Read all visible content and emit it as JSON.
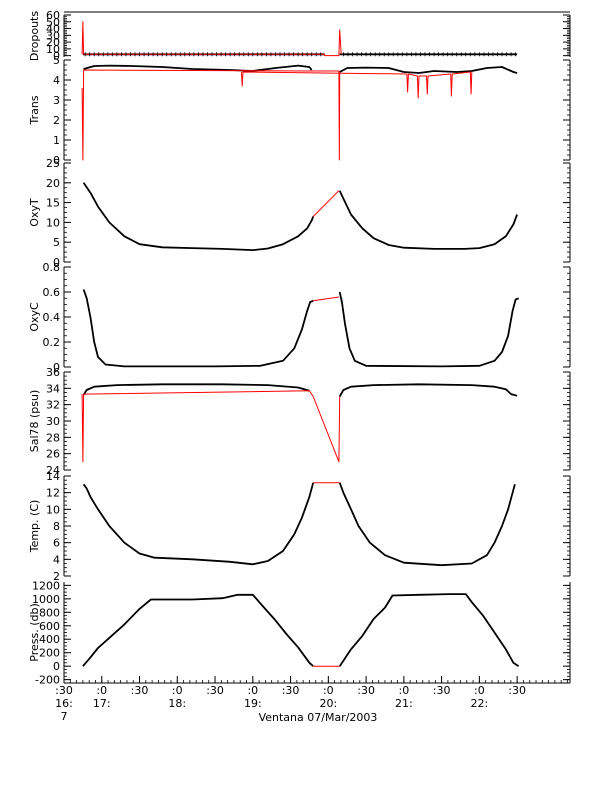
{
  "figure": {
    "footer_label": "Ventana 07/Mar/2003",
    "x_ticks": [
      {
        "t": 16.5,
        "l1": ":30",
        "l2": "16:",
        "l3": "7"
      },
      {
        "t": 17.0,
        "l1": ":0",
        "l2": "17:",
        "l3": ""
      },
      {
        "t": 17.5,
        "l1": ":30",
        "l2": "",
        "l3": ""
      },
      {
        "t": 18.0,
        "l1": ":0",
        "l2": "18:",
        "l3": ""
      },
      {
        "t": 18.5,
        "l1": ":30",
        "l2": "",
        "l3": ""
      },
      {
        "t": 19.0,
        "l1": ":0",
        "l2": "19:",
        "l3": ""
      },
      {
        "t": 19.5,
        "l1": ":30",
        "l2": "",
        "l3": ""
      },
      {
        "t": 20.0,
        "l1": ":0",
        "l2": "20:",
        "l3": ""
      },
      {
        "t": 20.5,
        "l1": ":30",
        "l2": "",
        "l3": ""
      },
      {
        "t": 21.0,
        "l1": ":0",
        "l2": "21:",
        "l3": ""
      },
      {
        "t": 21.5,
        "l1": ":30",
        "l2": "",
        "l3": ""
      },
      {
        "t": 22.0,
        "l1": ":0",
        "l2": "22:",
        "l3": ""
      },
      {
        "t": 22.5,
        "l1": ":30",
        "l2": "",
        "l3": ""
      }
    ],
    "x_range": [
      16.5,
      23.2
    ],
    "colors": {
      "data": "#000000",
      "gap_fill": "#ff0000",
      "axis": "#000000"
    }
  },
  "chart_data": [
    {
      "type": "line",
      "ylabel": "Dropouts",
      "ylim": [
        -2,
        60
      ],
      "yticks": [
        0,
        10,
        20,
        30,
        40,
        50,
        60
      ],
      "series": [
        {
          "kind": "black",
          "points": [
            [
              16.75,
              2
            ],
            [
              19.95,
              2
            ]
          ]
        },
        {
          "kind": "black",
          "points": [
            [
              20.15,
              2
            ],
            [
              22.5,
              2
            ]
          ]
        },
        {
          "kind": "red",
          "points": [
            [
              16.74,
              2
            ],
            [
              16.75,
              50
            ],
            [
              16.76,
              2
            ],
            [
              19.95,
              2
            ],
            [
              19.95,
              0
            ],
            [
              20.14,
              0
            ],
            [
              20.15,
              38
            ],
            [
              20.17,
              2
            ]
          ]
        }
      ]
    },
    {
      "type": "line",
      "ylabel": "Trans",
      "ylim": [
        0,
        5
      ],
      "yticks": [
        0,
        1,
        2,
        3,
        4,
        5
      ],
      "series": [
        {
          "kind": "black",
          "points": [
            [
              16.76,
              4.55
            ],
            [
              16.9,
              4.7
            ],
            [
              17.1,
              4.72
            ],
            [
              17.4,
              4.7
            ],
            [
              17.8,
              4.65
            ],
            [
              18.2,
              4.55
            ],
            [
              18.7,
              4.5
            ],
            [
              19.0,
              4.45
            ],
            [
              19.3,
              4.6
            ],
            [
              19.6,
              4.72
            ],
            [
              19.75,
              4.65
            ],
            [
              19.78,
              4.5
            ]
          ]
        },
        {
          "kind": "black",
          "points": [
            [
              20.15,
              4.4
            ],
            [
              20.25,
              4.6
            ],
            [
              20.5,
              4.62
            ],
            [
              20.8,
              4.6
            ],
            [
              21.0,
              4.4
            ],
            [
              21.2,
              4.35
            ],
            [
              21.4,
              4.45
            ],
            [
              21.7,
              4.4
            ],
            [
              21.9,
              4.45
            ],
            [
              22.1,
              4.6
            ],
            [
              22.3,
              4.65
            ],
            [
              22.45,
              4.4
            ],
            [
              22.5,
              4.35
            ]
          ]
        },
        {
          "kind": "red",
          "points": [
            [
              16.74,
              3.6
            ],
            [
              16.75,
              0.0
            ],
            [
              16.76,
              4.5
            ],
            [
              19.78,
              4.45
            ],
            [
              20.14,
              4.45
            ],
            [
              20.145,
              0.0
            ],
            [
              20.15,
              4.4
            ]
          ]
        },
        {
          "kind": "red",
          "points": [
            [
              18.85,
              4.4
            ],
            [
              18.86,
              3.7
            ],
            [
              18.87,
              4.4
            ],
            [
              21.04,
              4.3
            ],
            [
              21.05,
              3.4
            ],
            [
              21.06,
              4.3
            ],
            [
              21.18,
              4.2
            ],
            [
              21.19,
              3.1
            ],
            [
              21.2,
              4.2
            ],
            [
              21.3,
              4.2
            ],
            [
              21.31,
              3.3
            ],
            [
              21.32,
              4.2
            ],
            [
              21.62,
              4.3
            ],
            [
              21.63,
              3.2
            ],
            [
              21.64,
              4.3
            ],
            [
              21.88,
              4.4
            ],
            [
              21.89,
              3.3
            ],
            [
              21.9,
              4.4
            ]
          ]
        }
      ]
    },
    {
      "type": "line",
      "ylabel": "OxyT",
      "ylim": [
        0,
        25
      ],
      "yticks": [
        0,
        5,
        10,
        15,
        20,
        25
      ],
      "series": [
        {
          "kind": "black",
          "points": [
            [
              16.76,
              20
            ],
            [
              16.85,
              17.5
            ],
            [
              16.95,
              14
            ],
            [
              17.1,
              10
            ],
            [
              17.3,
              6.5
            ],
            [
              17.5,
              4.5
            ],
            [
              17.8,
              3.7
            ],
            [
              18.2,
              3.5
            ],
            [
              18.6,
              3.3
            ],
            [
              19.0,
              3.0
            ],
            [
              19.2,
              3.4
            ],
            [
              19.4,
              4.5
            ],
            [
              19.6,
              6.5
            ],
            [
              19.72,
              8.5
            ],
            [
              19.78,
              10.5
            ],
            [
              19.8,
              11.5
            ]
          ]
        },
        {
          "kind": "black",
          "points": [
            [
              20.15,
              18
            ],
            [
              20.2,
              16
            ],
            [
              20.3,
              12
            ],
            [
              20.45,
              8.5
            ],
            [
              20.6,
              6
            ],
            [
              20.8,
              4.3
            ],
            [
              21.0,
              3.6
            ],
            [
              21.4,
              3.3
            ],
            [
              21.8,
              3.3
            ],
            [
              22.0,
              3.5
            ],
            [
              22.2,
              4.5
            ],
            [
              22.35,
              6.5
            ],
            [
              22.45,
              9.5
            ],
            [
              22.5,
              12
            ]
          ]
        },
        {
          "kind": "red",
          "points": [
            [
              19.8,
              11.5
            ],
            [
              20.14,
              18
            ]
          ]
        }
      ]
    },
    {
      "type": "line",
      "ylabel": "OxyC",
      "ylim": [
        0,
        0.8
      ],
      "yticks": [
        0.0,
        0.2,
        0.4,
        0.6,
        0.8
      ],
      "series": [
        {
          "kind": "black",
          "points": [
            [
              16.76,
              0.62
            ],
            [
              16.8,
              0.55
            ],
            [
              16.85,
              0.4
            ],
            [
              16.9,
              0.2
            ],
            [
              16.95,
              0.08
            ],
            [
              17.05,
              0.02
            ],
            [
              17.3,
              0.005
            ],
            [
              18.5,
              0.005
            ],
            [
              19.1,
              0.01
            ],
            [
              19.4,
              0.05
            ],
            [
              19.55,
              0.15
            ],
            [
              19.65,
              0.3
            ],
            [
              19.72,
              0.45
            ],
            [
              19.76,
              0.52
            ],
            [
              19.8,
              0.53
            ]
          ]
        },
        {
          "kind": "black",
          "points": [
            [
              20.15,
              0.6
            ],
            [
              20.18,
              0.52
            ],
            [
              20.22,
              0.35
            ],
            [
              20.28,
              0.15
            ],
            [
              20.35,
              0.05
            ],
            [
              20.5,
              0.01
            ],
            [
              21.5,
              0.005
            ],
            [
              22.0,
              0.01
            ],
            [
              22.2,
              0.05
            ],
            [
              22.3,
              0.12
            ],
            [
              22.38,
              0.25
            ],
            [
              22.44,
              0.45
            ],
            [
              22.48,
              0.54
            ],
            [
              22.52,
              0.55
            ]
          ]
        },
        {
          "kind": "red",
          "points": [
            [
              19.8,
              0.53
            ],
            [
              20.14,
              0.56
            ]
          ]
        }
      ]
    },
    {
      "type": "line",
      "ylabel": "Sal78 (psu)",
      "ylim": [
        24,
        36
      ],
      "yticks": [
        24,
        26,
        28,
        30,
        32,
        34,
        36
      ],
      "series": [
        {
          "kind": "black",
          "points": [
            [
              16.76,
              33.2
            ],
            [
              16.8,
              33.8
            ],
            [
              16.9,
              34.2
            ],
            [
              17.2,
              34.4
            ],
            [
              17.8,
              34.5
            ],
            [
              18.6,
              34.5
            ],
            [
              19.2,
              34.4
            ],
            [
              19.6,
              34.1
            ],
            [
              19.75,
              33.7
            ]
          ]
        },
        {
          "kind": "black",
          "points": [
            [
              20.15,
              33.0
            ],
            [
              20.2,
              33.8
            ],
            [
              20.3,
              34.2
            ],
            [
              20.6,
              34.4
            ],
            [
              21.2,
              34.5
            ],
            [
              21.9,
              34.4
            ],
            [
              22.2,
              34.2
            ],
            [
              22.35,
              33.9
            ],
            [
              22.42,
              33.3
            ],
            [
              22.5,
              33.1
            ]
          ]
        },
        {
          "kind": "red",
          "points": [
            [
              16.74,
              33.3
            ],
            [
              16.75,
              25.0
            ],
            [
              16.76,
              33.3
            ],
            [
              19.75,
              33.7
            ],
            [
              19.8,
              33.0
            ],
            [
              20.14,
              25.0
            ],
            [
              20.15,
              33.0
            ]
          ]
        }
      ]
    },
    {
      "type": "line",
      "ylabel": "Temp. (C)",
      "ylim": [
        2,
        14
      ],
      "yticks": [
        2,
        4,
        6,
        8,
        10,
        12,
        14
      ],
      "series": [
        {
          "kind": "black",
          "points": [
            [
              16.76,
              13
            ],
            [
              16.8,
              12.5
            ],
            [
              16.85,
              11.5
            ],
            [
              16.95,
              10
            ],
            [
              17.1,
              8
            ],
            [
              17.3,
              6
            ],
            [
              17.5,
              4.7
            ],
            [
              17.7,
              4.2
            ],
            [
              18.2,
              4.0
            ],
            [
              18.7,
              3.7
            ],
            [
              19.0,
              3.4
            ],
            [
              19.2,
              3.8
            ],
            [
              19.4,
              5
            ],
            [
              19.55,
              7
            ],
            [
              19.65,
              9
            ],
            [
              19.75,
              11.5
            ],
            [
              19.8,
              13.2
            ]
          ]
        },
        {
          "kind": "black",
          "points": [
            [
              20.15,
              13.2
            ],
            [
              20.2,
              12
            ],
            [
              20.3,
              10
            ],
            [
              20.4,
              8
            ],
            [
              20.55,
              6
            ],
            [
              20.75,
              4.5
            ],
            [
              21.0,
              3.6
            ],
            [
              21.5,
              3.3
            ],
            [
              21.9,
              3.5
            ],
            [
              22.1,
              4.5
            ],
            [
              22.2,
              6
            ],
            [
              22.3,
              8
            ],
            [
              22.38,
              10
            ],
            [
              22.44,
              12
            ],
            [
              22.47,
              13
            ]
          ]
        },
        {
          "kind": "red",
          "points": [
            [
              19.8,
              13.2
            ],
            [
              20.15,
              13.2
            ]
          ]
        }
      ]
    },
    {
      "type": "line",
      "ylabel": "Press. (db)",
      "ylim": [
        -250,
        1250
      ],
      "yticks": [
        -200,
        0,
        200,
        400,
        600,
        800,
        1000,
        1200
      ],
      "series": [
        {
          "kind": "black",
          "points": [
            [
              16.75,
              0
            ],
            [
              16.85,
              130
            ],
            [
              16.95,
              270
            ],
            [
              17.1,
              420
            ],
            [
              17.3,
              620
            ],
            [
              17.5,
              850
            ],
            [
              17.65,
              990
            ],
            [
              18.2,
              990
            ],
            [
              18.6,
              1010
            ],
            [
              18.8,
              1060
            ],
            [
              19.0,
              1060
            ],
            [
              19.15,
              870
            ],
            [
              19.3,
              680
            ],
            [
              19.45,
              470
            ],
            [
              19.6,
              280
            ],
            [
              19.75,
              50
            ],
            [
              19.8,
              0
            ]
          ]
        },
        {
          "kind": "black",
          "points": [
            [
              20.15,
              0
            ],
            [
              20.3,
              250
            ],
            [
              20.45,
              450
            ],
            [
              20.6,
              700
            ],
            [
              20.75,
              870
            ],
            [
              20.85,
              1050
            ],
            [
              21.2,
              1060
            ],
            [
              21.6,
              1070
            ],
            [
              21.82,
              1070
            ],
            [
              21.9,
              950
            ],
            [
              22.05,
              750
            ],
            [
              22.2,
              500
            ],
            [
              22.35,
              250
            ],
            [
              22.45,
              50
            ],
            [
              22.52,
              0
            ]
          ]
        },
        {
          "kind": "red",
          "points": [
            [
              19.8,
              0
            ],
            [
              20.15,
              0
            ]
          ]
        }
      ]
    }
  ]
}
